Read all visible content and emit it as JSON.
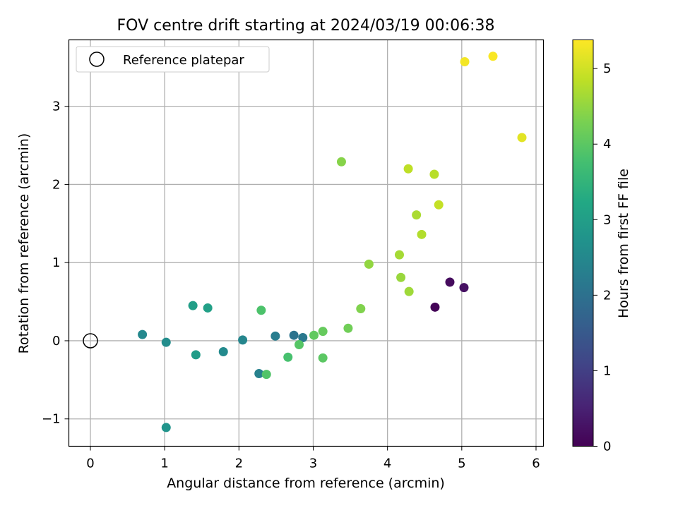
{
  "chart_data": {
    "type": "scatter",
    "title": "FOV centre drift starting at 2024/03/19 00:06:38",
    "xlabel": "Angular distance from reference (arcmin)",
    "ylabel": "Rotation from reference (arcmin)",
    "xlim": [
      -0.29,
      6.1
    ],
    "ylim": [
      -1.35,
      3.85
    ],
    "xticks": [
      0,
      1,
      2,
      3,
      4,
      5,
      6
    ],
    "yticks": [
      -1,
      0,
      1,
      2,
      3
    ],
    "grid": true,
    "legend": {
      "position": "top-left",
      "entries": [
        "Reference platepar"
      ]
    },
    "reference_point": {
      "x": 0,
      "y": 0
    },
    "colorbar": {
      "label": "Hours from first FF file",
      "colormap": "viridis",
      "range": [
        0,
        5.38
      ],
      "ticks": [
        0,
        1,
        2,
        3,
        4,
        5
      ]
    },
    "points": [
      {
        "x": 4.64,
        "y": 0.43,
        "hours": 0.05
      },
      {
        "x": 4.84,
        "y": 0.75,
        "hours": 0.15
      },
      {
        "x": 5.03,
        "y": 0.68,
        "hours": 0.25
      },
      {
        "x": 2.74,
        "y": 0.07,
        "hours": 2.05
      },
      {
        "x": 2.86,
        "y": 0.04,
        "hours": 2.15
      },
      {
        "x": 2.49,
        "y": 0.06,
        "hours": 2.25
      },
      {
        "x": 2.27,
        "y": -0.42,
        "hours": 2.35
      },
      {
        "x": 2.05,
        "y": 0.01,
        "hours": 2.45
      },
      {
        "x": 0.7,
        "y": 0.08,
        "hours": 2.5
      },
      {
        "x": 1.79,
        "y": -0.14,
        "hours": 2.55
      },
      {
        "x": 1.02,
        "y": -0.02,
        "hours": 2.6
      },
      {
        "x": 1.02,
        "y": -1.11,
        "hours": 2.75
      },
      {
        "x": 1.42,
        "y": -0.18,
        "hours": 2.95
      },
      {
        "x": 1.38,
        "y": 0.45,
        "hours": 3.0
      },
      {
        "x": 1.58,
        "y": 0.42,
        "hours": 3.05
      },
      {
        "x": 2.66,
        "y": -0.21,
        "hours": 3.8
      },
      {
        "x": 2.3,
        "y": 0.39,
        "hours": 3.85
      },
      {
        "x": 2.37,
        "y": -0.43,
        "hours": 3.9
      },
      {
        "x": 2.81,
        "y": -0.05,
        "hours": 3.95
      },
      {
        "x": 3.13,
        "y": -0.22,
        "hours": 4.0
      },
      {
        "x": 3.01,
        "y": 0.07,
        "hours": 4.05
      },
      {
        "x": 3.13,
        "y": 0.12,
        "hours": 4.1
      },
      {
        "x": 3.47,
        "y": 0.16,
        "hours": 4.2
      },
      {
        "x": 3.64,
        "y": 0.41,
        "hours": 4.35
      },
      {
        "x": 3.38,
        "y": 2.29,
        "hours": 4.4
      },
      {
        "x": 3.75,
        "y": 0.98,
        "hours": 4.5
      },
      {
        "x": 4.18,
        "y": 0.81,
        "hours": 4.55
      },
      {
        "x": 4.29,
        "y": 0.63,
        "hours": 4.6
      },
      {
        "x": 4.16,
        "y": 1.1,
        "hours": 4.65
      },
      {
        "x": 4.39,
        "y": 1.61,
        "hours": 4.7
      },
      {
        "x": 4.46,
        "y": 1.36,
        "hours": 4.75
      },
      {
        "x": 4.63,
        "y": 2.13,
        "hours": 4.8
      },
      {
        "x": 4.28,
        "y": 2.2,
        "hours": 4.85
      },
      {
        "x": 4.69,
        "y": 1.74,
        "hours": 4.9
      },
      {
        "x": 5.81,
        "y": 2.6,
        "hours": 5.15
      },
      {
        "x": 5.04,
        "y": 3.57,
        "hours": 5.3
      },
      {
        "x": 5.42,
        "y": 3.64,
        "hours": 5.35
      }
    ]
  }
}
